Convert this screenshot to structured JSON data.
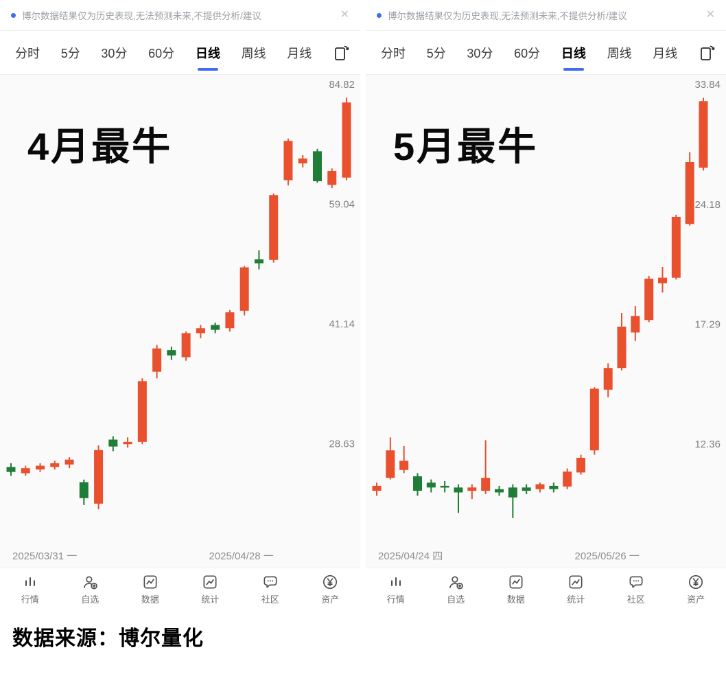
{
  "caption": "数据来源：博尔量化",
  "notice": {
    "text": "博尔数据结果仅为历史表现,无法预测未来,不提供分析/建议",
    "close": "✕"
  },
  "tabs": [
    "分时",
    "5分",
    "30分",
    "60分",
    "日线",
    "周线",
    "月线"
  ],
  "active_tab": "日线",
  "nav": [
    {
      "id": "market",
      "label": "行情",
      "icon": "market-bars-icon"
    },
    {
      "id": "watchlist",
      "label": "自选",
      "icon": "watchlist-person-icon"
    },
    {
      "id": "data",
      "label": "数据",
      "icon": "data-chart-icon"
    },
    {
      "id": "stats",
      "label": "统计",
      "icon": "stats-line-icon"
    },
    {
      "id": "community",
      "label": "社区",
      "icon": "community-bubble-icon"
    },
    {
      "id": "assets",
      "label": "资产",
      "icon": "assets-yuan-icon"
    }
  ],
  "colors": {
    "up": "#e8502e",
    "down": "#1f7d38",
    "accent": "#3d6ef2",
    "tick_label": "#818181"
  },
  "chart_data": [
    {
      "type": "candlestick",
      "title": "4月最牛",
      "y_scale": "log",
      "ylim": [
        19.7,
        87.3
      ],
      "y_ticks": [
        {
          "label": "84.82",
          "value": 84.82
        },
        {
          "label": "59.04",
          "value": 59.04
        },
        {
          "label": "41.14",
          "value": 41.14
        },
        {
          "label": "28.63",
          "value": 28.63
        }
      ],
      "x_labels": [
        "2025/03/31 一",
        "2025/04/28 一"
      ],
      "x_start": 16,
      "x_end": 505,
      "candles": [
        [
          26.7,
          27.0,
          26.0,
          26.3
        ],
        [
          26.2,
          26.8,
          26.0,
          26.6
        ],
        [
          26.5,
          27.0,
          26.3,
          26.8
        ],
        [
          26.7,
          27.2,
          26.5,
          27.0
        ],
        [
          26.9,
          27.5,
          26.6,
          27.3
        ],
        [
          25.5,
          25.7,
          23.8,
          24.3
        ],
        [
          23.9,
          28.5,
          23.5,
          28.1
        ],
        [
          29.0,
          29.3,
          28.0,
          28.4
        ],
        [
          28.6,
          29.2,
          28.3,
          28.8
        ],
        [
          28.8,
          34.9,
          28.6,
          34.6
        ],
        [
          35.6,
          38.6,
          34.9,
          38.2
        ],
        [
          38.0,
          38.4,
          36.9,
          37.4
        ],
        [
          37.2,
          40.2,
          36.8,
          40.0
        ],
        [
          40.0,
          41.0,
          39.4,
          40.6
        ],
        [
          41.0,
          41.3,
          40.0,
          40.4
        ],
        [
          40.6,
          42.9,
          40.2,
          42.6
        ],
        [
          42.8,
          49.0,
          42.2,
          48.8
        ],
        [
          50.0,
          51.4,
          48.5,
          49.4
        ],
        [
          49.9,
          61.0,
          49.5,
          60.7
        ],
        [
          63.5,
          72.0,
          62.5,
          71.5
        ],
        [
          66.8,
          68.5,
          66.0,
          67.8
        ],
        [
          69.3,
          69.8,
          63.0,
          63.3
        ],
        [
          62.6,
          65.8,
          62.0,
          65.3
        ],
        [
          64.0,
          81.5,
          63.5,
          80.3
        ]
      ]
    },
    {
      "type": "candlestick",
      "title": "5月最牛",
      "y_scale": "log",
      "ylim": [
        8.75,
        34.77
      ],
      "y_ticks": [
        {
          "label": "33.84",
          "value": 33.84
        },
        {
          "label": "24.18",
          "value": 24.18
        },
        {
          "label": "17.29",
          "value": 17.29
        },
        {
          "label": "12.36",
          "value": 12.36
        }
      ],
      "x_labels": [
        "2025/04/24 四",
        "2025/05/26 一"
      ],
      "x_start": 16,
      "x_end": 492,
      "candles": [
        [
          10.85,
          11.1,
          10.7,
          11.0
        ],
        [
          11.25,
          12.6,
          11.2,
          12.15
        ],
        [
          11.5,
          12.3,
          11.4,
          11.8
        ],
        [
          11.3,
          11.4,
          10.7,
          10.85
        ],
        [
          11.1,
          11.2,
          10.8,
          10.95
        ],
        [
          11.0,
          11.15,
          10.8,
          10.95
        ],
        [
          10.95,
          11.05,
          10.2,
          10.8
        ],
        [
          10.85,
          11.05,
          10.6,
          10.95
        ],
        [
          10.85,
          12.5,
          10.75,
          11.25
        ],
        [
          10.9,
          11.0,
          10.7,
          10.8
        ],
        [
          10.95,
          11.05,
          10.05,
          10.65
        ],
        [
          10.95,
          11.05,
          10.75,
          10.85
        ],
        [
          10.9,
          11.1,
          10.8,
          11.05
        ],
        [
          11.0,
          11.1,
          10.8,
          10.9
        ],
        [
          10.98,
          11.55,
          10.9,
          11.45
        ],
        [
          11.42,
          12.0,
          11.35,
          11.9
        ],
        [
          12.15,
          14.5,
          12.0,
          14.44
        ],
        [
          14.4,
          15.5,
          14.1,
          15.3
        ],
        [
          15.3,
          17.85,
          15.2,
          17.18
        ],
        [
          16.9,
          18.2,
          16.5,
          17.7
        ],
        [
          17.5,
          19.8,
          17.4,
          19.65
        ],
        [
          19.4,
          20.3,
          18.9,
          19.7
        ],
        [
          19.7,
          23.5,
          19.6,
          23.36
        ],
        [
          22.9,
          28.0,
          22.8,
          27.24
        ],
        [
          26.8,
          32.6,
          26.6,
          32.3
        ]
      ]
    }
  ]
}
